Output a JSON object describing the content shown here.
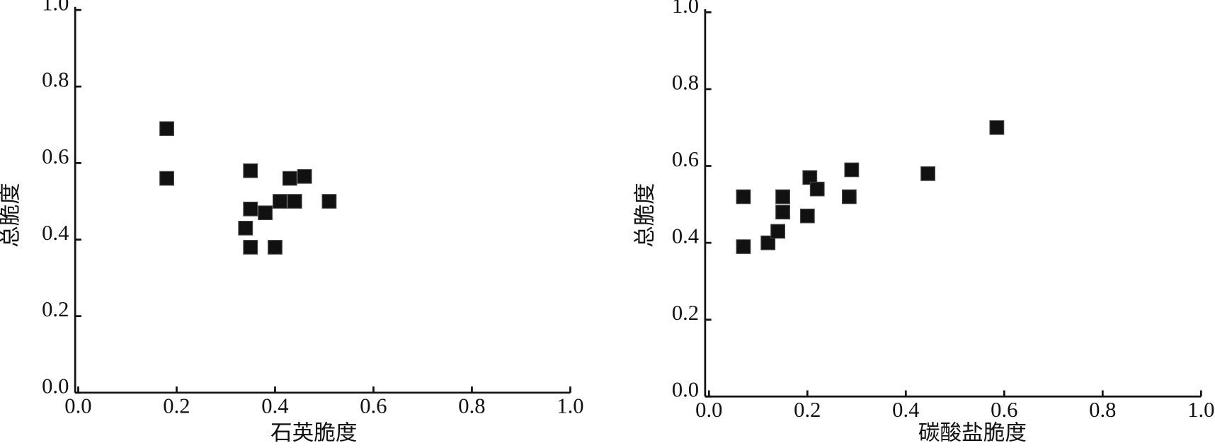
{
  "chart_data": [
    {
      "type": "scatter",
      "x_label": "石英脆度",
      "y_label": "总脆度",
      "color": "#111111",
      "x": [
        0.18,
        0.18,
        0.35,
        0.43,
        0.46,
        0.35,
        0.38,
        0.41,
        0.44,
        0.51,
        0.34,
        0.35,
        0.4
      ],
      "values": [
        0.69,
        0.56,
        0.58,
        0.56,
        0.565,
        0.48,
        0.47,
        0.5,
        0.5,
        0.5,
        0.43,
        0.38,
        0.38
      ],
      "xlim": [
        -0.01,
        1.0
      ],
      "ylim": [
        0,
        1.0
      ],
      "xticks": [
        {
          "value": 0,
          "label": "0.0"
        },
        0.2,
        0.4,
        0.6,
        0.8,
        {
          "value": 1,
          "label": "1.0"
        }
      ],
      "yticks": [
        {
          "value": 0,
          "label": "0.0"
        },
        0.2,
        0.4,
        0.6,
        0.8,
        {
          "value": 1,
          "label": "1.0"
        }
      ]
    },
    {
      "type": "scatter",
      "x_label": "碳酸盐脆度",
      "y_label": "总脆度",
      "color": "#111111",
      "x": [
        0.585,
        0.445,
        0.29,
        0.205,
        0.22,
        0.285,
        0.07,
        0.07,
        0.12,
        0.14,
        0.15,
        0.15,
        0.2
      ],
      "values": [
        0.7,
        0.58,
        0.59,
        0.57,
        0.54,
        0.52,
        0.52,
        0.39,
        0.4,
        0.43,
        0.52,
        0.48,
        0.47
      ],
      "xlim": [
        -0.01,
        1.0
      ],
      "ylim": [
        0,
        1.0
      ],
      "xticks": [
        {
          "value": 0,
          "label": "0.0"
        },
        0.2,
        0.4,
        0.6,
        0.8,
        {
          "value": 1,
          "label": "1.0"
        }
      ],
      "yticks": [
        {
          "value": 0,
          "label": "0.0"
        },
        0.2,
        0.4,
        0.6,
        0.8,
        {
          "value": 1,
          "label": "1.0"
        }
      ]
    }
  ]
}
